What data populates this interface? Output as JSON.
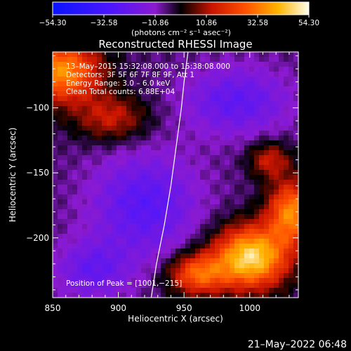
{
  "colorbar": {
    "ticks": [
      "−54.30",
      "−32.58",
      "−10.86",
      "10.86",
      "32.58",
      "54.30"
    ],
    "min": -54.3,
    "max": 54.3
  },
  "chart_data": {
    "type": "heatmap",
    "title": "Reconstructed RHESSI Image",
    "units_label": "(photons cm⁻² s⁻¹ asec⁻²)",
    "xlabel": "Heliocentric X (arcsec)",
    "ylabel": "Heliocentric Y (arcsec)",
    "xlim": [
      850,
      1037
    ],
    "ylim": [
      -246,
      -57
    ],
    "x_ticks": [
      {
        "value": 850,
        "label": "850"
      },
      {
        "value": 900,
        "label": "900"
      },
      {
        "value": 950,
        "label": "950"
      },
      {
        "value": 1000,
        "label": "1000"
      }
    ],
    "y_ticks": [
      {
        "value": -100,
        "label": "−100"
      },
      {
        "value": -150,
        "label": "−150"
      },
      {
        "value": -200,
        "label": "−200"
      }
    ],
    "annotations": [
      "13–May–2015 15:32:08.000 to 15:38:08.000",
      "Detectors: 3F 5F 6F 7F 8F 9F, Att 1",
      "Energy Range: 3.0 – 6.0 keV",
      "Clean    Total counts: 6.88E+04"
    ],
    "peak_label": "Position of Peak = [1001,−215]",
    "limb": [
      [
        925,
        -246
      ],
      [
        929,
        -220
      ],
      [
        935,
        -190
      ],
      [
        940,
        -160
      ],
      [
        944,
        -130
      ],
      [
        948,
        -100
      ],
      [
        950,
        -80
      ],
      [
        953,
        -57
      ]
    ],
    "features": [
      {
        "x": 857,
        "y": -72,
        "value": 42,
        "sx": 30,
        "sy": 24
      },
      {
        "x": 895,
        "y": -108,
        "value": 20,
        "sx": 28,
        "sy": 18
      },
      {
        "x": 1001,
        "y": -215,
        "value": 54,
        "sx": 28,
        "sy": 24
      },
      {
        "x": 1032,
        "y": -180,
        "value": 40,
        "sx": 18,
        "sy": 24
      },
      {
        "x": 960,
        "y": -228,
        "value": 34,
        "sx": 22,
        "sy": 16
      },
      {
        "x": 1015,
        "y": -140,
        "value": 20,
        "sx": 16,
        "sy": 14
      },
      {
        "x": 990,
        "y": -95,
        "value": -18,
        "sx": 40,
        "sy": 26
      },
      {
        "x": 920,
        "y": -175,
        "value": -20,
        "sx": 40,
        "sy": 40
      },
      {
        "x": 880,
        "y": -225,
        "value": -16,
        "sx": 28,
        "sy": 22
      }
    ]
  },
  "footer": {
    "date": "21–May–2022 06:48"
  }
}
